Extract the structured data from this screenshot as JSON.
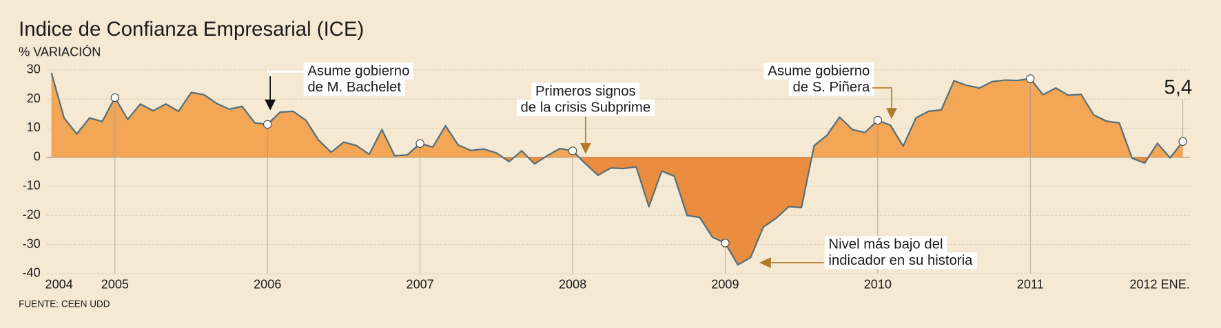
{
  "chart_data": {
    "type": "area",
    "title": "Indice de Confianza Empresarial (ICE)",
    "subtitle": "% VARIACIÓN",
    "source": "FUENTE: CEEN UDD",
    "categories": [
      "2004",
      null,
      null,
      null,
      null,
      "2005",
      null,
      null,
      null,
      null,
      null,
      null,
      null,
      null,
      null,
      null,
      null,
      "2006",
      null,
      null,
      null,
      null,
      null,
      null,
      null,
      null,
      null,
      null,
      null,
      "2007",
      null,
      null,
      null,
      null,
      null,
      null,
      null,
      null,
      null,
      null,
      null,
      "2008",
      null,
      null,
      null,
      null,
      null,
      null,
      null,
      null,
      null,
      null,
      null,
      "2009",
      null,
      null,
      null,
      null,
      null,
      null,
      null,
      null,
      null,
      null,
      null,
      "2010",
      null,
      null,
      null,
      null,
      null,
      null,
      null,
      null,
      null,
      null,
      null,
      "2011",
      null,
      null,
      null,
      null,
      null,
      null,
      null,
      null,
      null,
      null,
      null,
      "2012 ENE."
    ],
    "series": [
      {
        "color": "#56707a",
        "fill": "#f2a656",
        "fill_negative": "#ea8d40",
        "values": [
          29,
          13.5,
          8,
          13.5,
          12.3,
          20.5,
          13,
          18.3,
          16,
          18.3,
          15.8,
          22.3,
          21.5,
          18.5,
          16.5,
          17.5,
          11.8,
          11.3,
          15.5,
          15.8,
          12.8,
          6,
          1.7,
          5.2,
          4,
          1,
          9.5,
          0.5,
          0.8,
          4.7,
          3.5,
          10.8,
          4.2,
          2.3,
          2.8,
          1.5,
          -1.5,
          2.2,
          -2.3,
          0.5,
          3,
          2.2,
          -2.2,
          -6.2,
          -3.7,
          -3.9,
          -3.3,
          -17,
          -4.8,
          -6.5,
          -20,
          -20.7,
          -27.5,
          -29.5,
          -37,
          -34.5,
          -24,
          -21,
          -17,
          -17.3,
          4,
          7.5,
          13.8,
          9.5,
          8.5,
          12.7,
          11,
          3.8,
          13.5,
          15.8,
          16.3,
          26.3,
          24.7,
          23.8,
          26,
          26.5,
          26.4,
          27,
          21.5,
          23.8,
          21.3,
          21.6,
          14.5,
          12.4,
          11.8,
          -0.3,
          -2,
          4.8,
          -0.2,
          5.4
        ],
        "value_labels": [
          null,
          null,
          null,
          null,
          null,
          null,
          null,
          null,
          null,
          null,
          null,
          null,
          null,
          null,
          null,
          null,
          null,
          null,
          null,
          null,
          null,
          null,
          null,
          null,
          null,
          null,
          null,
          null,
          null,
          null,
          null,
          null,
          null,
          null,
          null,
          null,
          null,
          null,
          null,
          null,
          null,
          null,
          null,
          null,
          null,
          null,
          null,
          null,
          null,
          null,
          null,
          null,
          null,
          null,
          null,
          null,
          null,
          null,
          null,
          null,
          null,
          null,
          null,
          null,
          null,
          null,
          null,
          null,
          null,
          null,
          null,
          null,
          null,
          null,
          null,
          null,
          null,
          null,
          null,
          null,
          null,
          null,
          null,
          null,
          null,
          null,
          null,
          null,
          null,
          "5,4"
        ]
      }
    ],
    "ylim": [
      -40,
      30
    ],
    "yticks": [
      -40,
      -30,
      -20,
      -10,
      0,
      10,
      20,
      30
    ],
    "grid": true,
    "annotations": [
      {
        "lines": [
          "Asume gobierno",
          "de M. Bachelet"
        ]
      },
      {
        "lines": [
          "Primeros signos",
          "de la crisis Subprime"
        ]
      },
      {
        "lines": [
          "Asume gobierno",
          "de S. Piñera"
        ]
      },
      {
        "lines": [
          "Nivel más bajo del",
          "indicador en su historia"
        ]
      }
    ]
  }
}
